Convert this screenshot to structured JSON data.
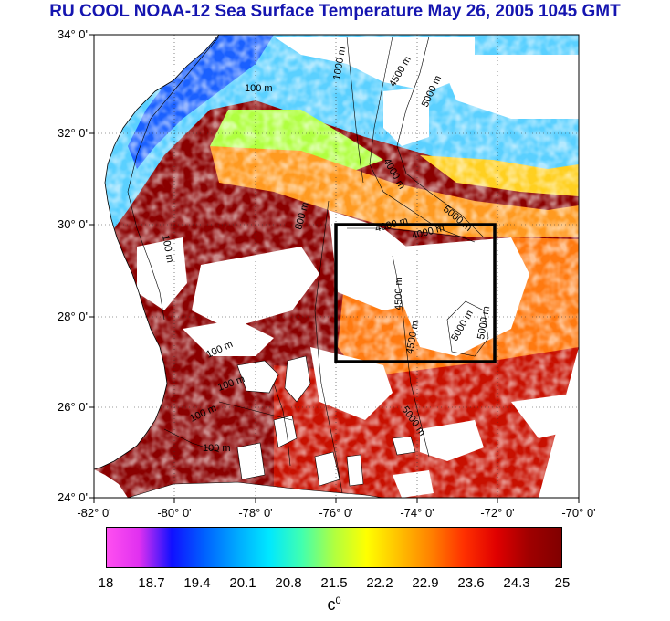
{
  "title": "RU COOL  NOAA-12 Sea Surface Temperature May 26, 2005 1045 GMT",
  "latitude_ticks": [
    "34° 0'",
    "32° 0'",
    "30° 0'",
    "28° 0'",
    "26° 0'",
    "24° 0'"
  ],
  "longitude_ticks": [
    "-82° 0'",
    "-80° 0'",
    "-78° 0'",
    "-76° 0'",
    "-74° 0'",
    "-72° 0'",
    "-70° 0'"
  ],
  "contour_labels": [
    "100 m",
    "1000 m",
    "4500 m",
    "5000 m",
    "4000 m",
    "5000 m",
    "4600 m",
    "4000 m",
    "800 m",
    "100 m",
    "4500 m",
    "5000 m",
    "5000 m",
    "4500 m",
    "100 m",
    "100 m",
    "100 m",
    "100 m",
    "5000 m"
  ],
  "colorbar": {
    "ticks": [
      "18",
      "18.7",
      "19.4",
      "20.1",
      "20.8",
      "21.5",
      "22.2",
      "22.9",
      "23.6",
      "24.3",
      "25"
    ],
    "unit": "c",
    "unit_superscript": "0",
    "colors": [
      "#ff50f0",
      "#e030f0",
      "#1010ff",
      "#0060ff",
      "#00a8ff",
      "#00e8ff",
      "#40ffb0",
      "#b0ff40",
      "#ffff00",
      "#ffc000",
      "#ff8000",
      "#ff3000",
      "#e00000",
      "#a00000",
      "#800000"
    ]
  },
  "colors": {
    "land": "#ffffff",
    "cloud": "#ffffff",
    "warm_water": "#8a0000",
    "box": "#000000",
    "title": "#1515b0"
  }
}
